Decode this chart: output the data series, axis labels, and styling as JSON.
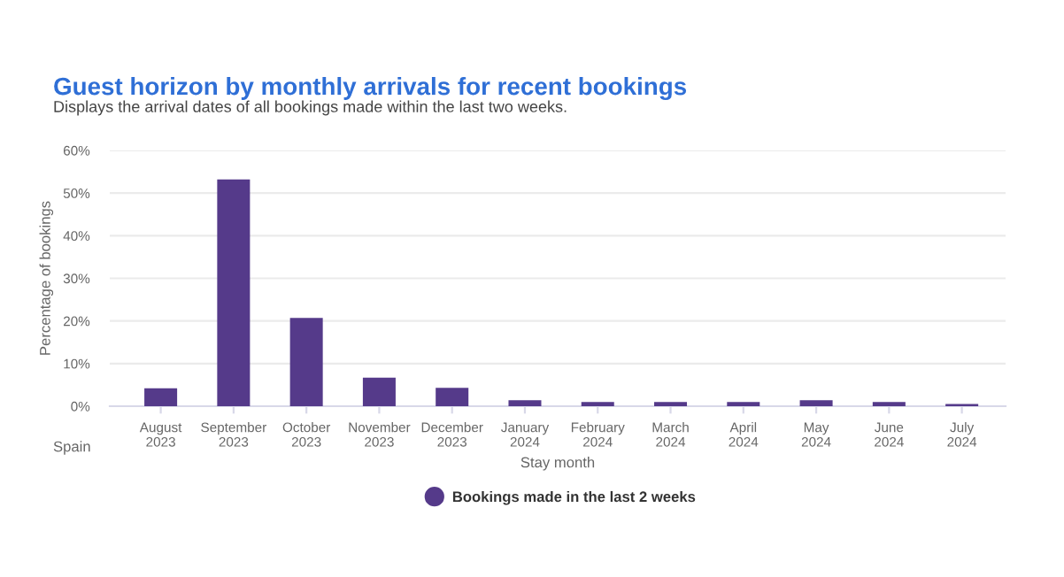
{
  "chart_data": {
    "type": "bar",
    "title": "Guest horizon by monthly arrivals for recent bookings",
    "subtitle": "Displays the arrival dates of all bookings made within the last two weeks.",
    "xlabel": "Stay month",
    "ylabel": "Percentage of bookings",
    "annotations": [
      "Spain"
    ],
    "categories": [
      "August\n2023",
      "September\n2023",
      "October\n2023",
      "November\n2023",
      "December\n2023",
      "January\n2024",
      "February\n2024",
      "March\n2024",
      "April\n2024",
      "May\n2024",
      "June\n2024",
      "July\n2024"
    ],
    "series": [
      {
        "name": "Bookings made in the last 2 weeks",
        "color": "#553a8a",
        "values": [
          4.2,
          53.2,
          20.7,
          6.7,
          4.3,
          1.4,
          1.0,
          1.0,
          1.0,
          1.4,
          1.0,
          0.5
        ]
      }
    ],
    "ylim": [
      0,
      60
    ],
    "yticks": [
      {
        "value": 0,
        "label": "0%"
      },
      {
        "value": 10,
        "label": "10%"
      },
      {
        "value": 20,
        "label": "20%"
      },
      {
        "value": 30,
        "label": "30%"
      },
      {
        "value": 40,
        "label": "40%"
      },
      {
        "value": 50,
        "label": "50%"
      },
      {
        "value": 60,
        "label": "60%"
      }
    ],
    "grid": "y",
    "legend": "bottom",
    "marker": "circle"
  }
}
